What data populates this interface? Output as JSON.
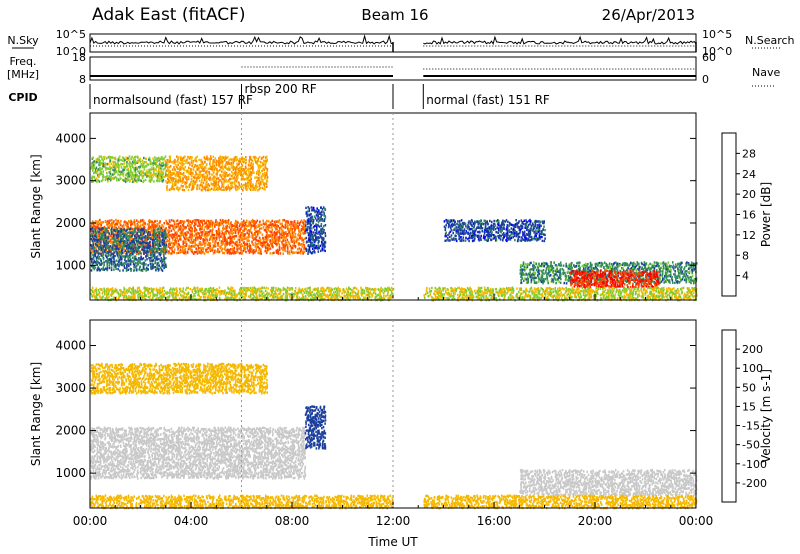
{
  "header": {
    "station": "Adak East (fitACF)",
    "beam": "Beam 16",
    "date": "26/Apr/2013"
  },
  "left_labels": {
    "nsky": "N.Sky",
    "freq_line1": "Freq.",
    "freq_line2": "[MHz]",
    "cpid": "CPID"
  },
  "right_labels": {
    "nsearch": "N.Search",
    "nave": "Nave"
  },
  "noise_panel": {
    "left_ticks": [
      "10^5",
      "10^0"
    ],
    "right_ticks": [
      "10^5",
      "10^0"
    ]
  },
  "freq_panel": {
    "left_ticks": [
      "18",
      "8"
    ],
    "right_ticks": [
      "60",
      "0"
    ]
  },
  "cpid_labels": [
    {
      "text": "normalsound (fast) 157 RF",
      "start_hour": 0.0
    },
    {
      "text": "rbsp 200 RF",
      "start_hour": 6.0
    },
    {
      "text": "normal (fast) 151 RF",
      "start_hour": 13.2
    }
  ],
  "data_gap_hours": [
    12.0,
    13.2
  ],
  "x_axis": {
    "title": "Time UT",
    "ticks": [
      "00:00",
      "04:00",
      "08:00",
      "12:00",
      "16:00",
      "20:00",
      "00:00"
    ],
    "range_hours": [
      0,
      24
    ]
  },
  "range_axis": {
    "title": "Slant Range [km]",
    "ticks": [
      "1000",
      "2000",
      "3000",
      "4000"
    ],
    "range_km": [
      180,
      4600
    ]
  },
  "power_colorbar": {
    "title": "Power [dB]",
    "ticks": [
      "4",
      "8",
      "12",
      "16",
      "20",
      "24",
      "28"
    ],
    "colors": [
      "#0000ff",
      "#1c3f9c",
      "#2e8b57",
      "#7fcc2e",
      "#f5b800",
      "#ff8800",
      "#ff4400",
      "#ff0000"
    ]
  },
  "velocity_colorbar": {
    "title": "Velocity [m s-1]",
    "ticks": [
      "200",
      "100",
      "50",
      "15",
      "-15",
      "-50",
      "-100",
      "-200"
    ],
    "colors": [
      "#0000ff",
      "#1c3f9c",
      "#2e8b57",
      "#7fcc2e",
      "#c8c8c8",
      "#f5b800",
      "#ff8800",
      "#ff4400",
      "#ff0000"
    ]
  },
  "chart_data": {
    "type": "heatmap",
    "x_unit": "hours UT",
    "y_unit": "km",
    "power_regions": [
      {
        "t0": 0.0,
        "t1": 3.0,
        "r0": 3000,
        "r1": 3600,
        "power_db": 14
      },
      {
        "t0": 3.0,
        "t1": 7.0,
        "r0": 2800,
        "r1": 3600,
        "power_db": 20
      },
      {
        "t0": 0.0,
        "t1": 8.5,
        "r0": 1300,
        "r1": 2100,
        "power_db": 24
      },
      {
        "t0": 0.0,
        "t1": 3.0,
        "r0": 900,
        "r1": 1900,
        "power_db": 8
      },
      {
        "t0": 8.5,
        "t1": 9.3,
        "r0": 1300,
        "r1": 2400,
        "power_db": 6
      },
      {
        "t0": 14.0,
        "t1": 18.0,
        "r0": 1600,
        "r1": 2100,
        "power_db": 6
      },
      {
        "t0": 17.0,
        "t1": 24.0,
        "r0": 600,
        "r1": 1100,
        "power_db": 10
      },
      {
        "t0": 19.0,
        "t1": 22.5,
        "r0": 500,
        "r1": 900,
        "power_db": 28
      },
      {
        "t0": 0.0,
        "t1": 24.0,
        "r0": 200,
        "r1": 500,
        "power_db": 16
      }
    ],
    "velocity_regions": [
      {
        "t0": 0.0,
        "t1": 7.0,
        "r0": 2900,
        "r1": 3600,
        "velocity": -40
      },
      {
        "t0": 0.0,
        "t1": 8.5,
        "r0": 900,
        "r1": 2100,
        "velocity": 0
      },
      {
        "t0": 8.5,
        "t1": 9.3,
        "r0": 1600,
        "r1": 2600,
        "velocity": 180
      },
      {
        "t0": 17.0,
        "t1": 24.0,
        "r0": 500,
        "r1": 1100,
        "velocity": 0
      },
      {
        "t0": 0.0,
        "t1": 24.0,
        "r0": 200,
        "r1": 500,
        "velocity": -30
      }
    ]
  }
}
